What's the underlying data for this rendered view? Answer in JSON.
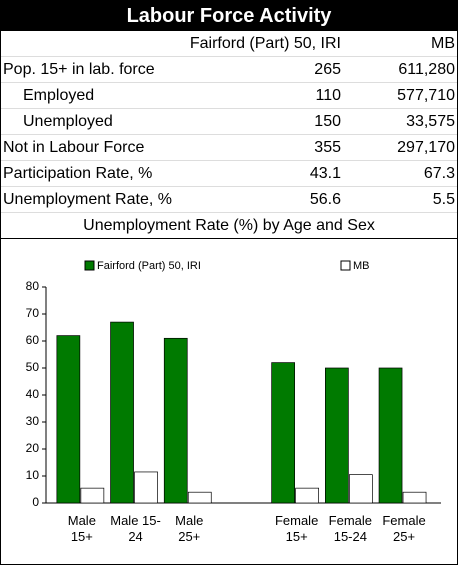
{
  "title": "Labour Force Activity",
  "table": {
    "header": [
      "Fairford (Part) 50, IRI",
      "MB"
    ],
    "rows": [
      [
        "Pop. 15+ in lab. force",
        "265",
        "611,280"
      ],
      [
        "Employed",
        "110",
        "577,710"
      ],
      [
        "Unemployed",
        "150",
        "33,575"
      ],
      [
        "Not in Labour Force",
        "355",
        "297,170"
      ],
      [
        "Participation Rate, %",
        "43.1",
        "67.3"
      ],
      [
        "Unemployment Rate, %",
        "56.6",
        "5.5"
      ]
    ]
  },
  "chart_data": {
    "type": "bar",
    "title": "Unemployment Rate (%) by Age and Sex",
    "categories": [
      "Male 15+",
      "Male 15-24",
      "Male 25+",
      null,
      "Female 15+",
      "Female 15-24",
      "Female 25+"
    ],
    "series": [
      {
        "name": "Fairford (Part) 50, IRI",
        "color": "#007a00",
        "values": [
          62,
          67,
          61,
          null,
          52,
          50,
          50
        ]
      },
      {
        "name": "MB",
        "color": "#ffffff",
        "values": [
          5.5,
          11.5,
          4,
          null,
          5.5,
          10.5,
          4
        ]
      }
    ],
    "ylim": [
      0,
      80
    ],
    "yticks": [
      0,
      10,
      20,
      30,
      40,
      50,
      60,
      70,
      80
    ]
  }
}
